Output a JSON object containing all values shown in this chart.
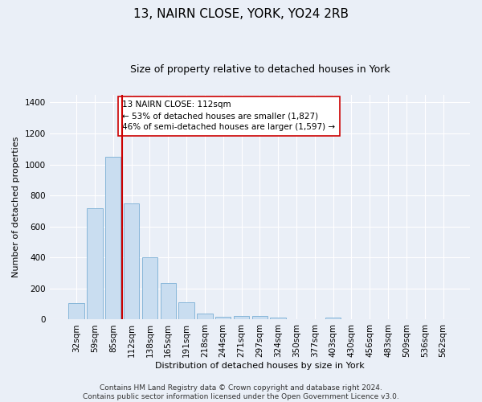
{
  "title": "13, NAIRN CLOSE, YORK, YO24 2RB",
  "subtitle": "Size of property relative to detached houses in York",
  "xlabel": "Distribution of detached houses by size in York",
  "ylabel": "Number of detached properties",
  "categories": [
    "32sqm",
    "59sqm",
    "85sqm",
    "112sqm",
    "138sqm",
    "165sqm",
    "191sqm",
    "218sqm",
    "244sqm",
    "271sqm",
    "297sqm",
    "324sqm",
    "350sqm",
    "377sqm",
    "403sqm",
    "430sqm",
    "456sqm",
    "483sqm",
    "509sqm",
    "536sqm",
    "562sqm"
  ],
  "values": [
    105,
    720,
    1050,
    750,
    400,
    235,
    110,
    40,
    20,
    25,
    25,
    15,
    0,
    0,
    15,
    0,
    0,
    0,
    0,
    0,
    0
  ],
  "bar_color": "#c9ddf0",
  "bar_edge_color": "#7aafd4",
  "vline_x": 2.5,
  "vline_color": "#cc0000",
  "annotation_text": "13 NAIRN CLOSE: 112sqm\n← 53% of detached houses are smaller (1,827)\n46% of semi-detached houses are larger (1,597) →",
  "annotation_box_color": "#ffffff",
  "annotation_box_edge": "#cc0000",
  "ylim": [
    0,
    1450
  ],
  "yticks": [
    0,
    200,
    400,
    600,
    800,
    1000,
    1200,
    1400
  ],
  "footer": "Contains HM Land Registry data © Crown copyright and database right 2024.\nContains public sector information licensed under the Open Government Licence v3.0.",
  "background_color": "#eaeff7",
  "plot_bg_color": "#eaeff7",
  "grid_color": "#ffffff",
  "title_fontsize": 11,
  "subtitle_fontsize": 9,
  "axis_label_fontsize": 8,
  "tick_fontsize": 7.5,
  "annotation_fontsize": 7.5,
  "footer_fontsize": 6.5
}
